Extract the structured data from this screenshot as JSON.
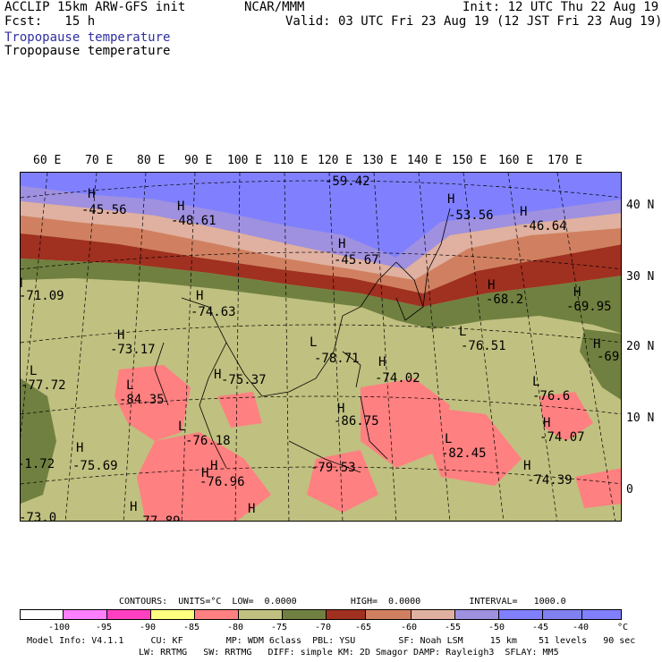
{
  "header": {
    "line1_left": "ACCLIP 15km ARW-GFS init",
    "line2_left": "Fcst:   15 h",
    "center": "NCAR/MMM",
    "init": "Init: 12 UTC Thu 22 Aug 19",
    "valid": "Valid: 03 UTC Fri 23 Aug 19 (12 JST Fri 23 Aug 19)",
    "field_title_blue": "Tropopause temperature",
    "field_title_black": "Tropopause temperature"
  },
  "map": {
    "lon_labels": [
      "60 E",
      "70 E",
      "80 E",
      "90 E",
      "100 E",
      "110 E",
      "120 E",
      "130 E",
      "140 E",
      "150 E",
      "160 E",
      "170 E"
    ],
    "lat_labels": [
      "40 N",
      "30 N",
      "20 N",
      "10 N",
      "0"
    ],
    "hl_markers": [
      {
        "t": "H"
      },
      {
        "t": "-45.56"
      },
      {
        "t": "H"
      },
      {
        "t": "-48.61"
      },
      {
        "t": "-59.42"
      },
      {
        "t": "H"
      },
      {
        "t": "-53.56"
      },
      {
        "t": "H"
      },
      {
        "t": "-46.64"
      },
      {
        "t": "H"
      },
      {
        "t": "-45.67"
      },
      {
        "t": "H"
      },
      {
        "t": "-71.09"
      },
      {
        "t": "H"
      },
      {
        "t": "-74.63"
      },
      {
        "t": "H"
      },
      {
        "t": "-68.2"
      },
      {
        "t": "H"
      },
      {
        "t": "-69.95"
      },
      {
        "t": "H"
      },
      {
        "t": "-73.17"
      },
      {
        "t": "L"
      },
      {
        "t": "-78.71"
      },
      {
        "t": "L"
      },
      {
        "t": "-76.51"
      },
      {
        "t": "H"
      },
      {
        "t": "-69"
      },
      {
        "t": "L"
      },
      {
        "t": "-77.72"
      },
      {
        "t": "L"
      },
      {
        "t": "-84.35"
      },
      {
        "t": "H"
      },
      {
        "t": "-75.37"
      },
      {
        "t": "H"
      },
      {
        "t": "-74.02"
      },
      {
        "t": "L"
      },
      {
        "t": "-76.6"
      },
      {
        "t": "H"
      },
      {
        "t": "-86.75"
      },
      {
        "t": "H"
      },
      {
        "t": "-74.07"
      },
      {
        "t": "L"
      },
      {
        "t": "-76.18"
      },
      {
        "t": "H"
      },
      {
        "t": "L"
      },
      {
        "t": "-82.45"
      },
      {
        "t": "H"
      },
      {
        "t": "-75.69"
      },
      {
        "t": "-1.72"
      },
      {
        "t": "H"
      },
      {
        "t": "-76.96"
      },
      {
        "t": "-79.53"
      },
      {
        "t": "H"
      },
      {
        "t": "-74.39"
      },
      {
        "t": "H"
      },
      {
        "t": "H"
      },
      {
        "t": "-73.0"
      },
      {
        "t": "-77.89"
      }
    ]
  },
  "colorbar": {
    "contours_line": "CONTOURS:  UNITS=°C  LOW=  0.0000          HIGH=  0.0000         INTERVAL=   1000.0",
    "labels": [
      "-100",
      "-95",
      "-90",
      "-85",
      "-80",
      "-75",
      "-70",
      "-65",
      "-60",
      "-55",
      "-50",
      "-45",
      "-40"
    ],
    "unit": "°C",
    "colors": [
      "#ffffff",
      "#ff80ff",
      "#ff40c0",
      "#ffff80",
      "#ff8080",
      "#c0c080",
      "#708040",
      "#a03020",
      "#d08060",
      "#e0b0a0",
      "#a090e0",
      "#8080ff",
      "#8080f0"
    ]
  },
  "footer": {
    "line1": "Model Info: V4.1.1     CU: KF        MP: WDM 6class  PBL: YSU        SF: Noah LSM     15 km    51 levels   90 sec",
    "line2": "LW: RRTMG   SW: RRTMG   DIFF: simple KM: 2D Smagor DAMP: Rayleigh3  SFLAY: MM5"
  }
}
